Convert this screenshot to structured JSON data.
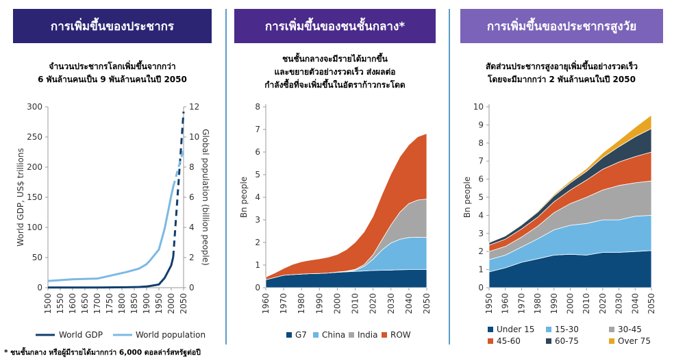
{
  "panels": [
    {
      "title": "การเพิ่มขึ้นของประชากร",
      "subtitle": [
        "จำนวนประชากรโลกเพิ่มขึ้นจากกว่า",
        "6 พันล้านคนเป็น 9 พันล้านคนในปี 2050"
      ]
    },
    {
      "title": "การเพิ่มขึ้นของชนชั้นกลาง*",
      "subtitle": [
        "ชนชั้นกลางจะมีรายได้มากขึ้น",
        "และขยายตัวอย่างรวดเร็ว ส่งผลต่อ",
        "กำลังซื้อที่จะเพิ่มขึ้นในอัตราก้าวกระโดด"
      ]
    },
    {
      "title": "การเพิ่มขึ้นของประชากรสูงวัย",
      "subtitle": [
        "สัดส่วนประชากรสูงอายุเพิ่มขึ้นอย่างรวดเร็ว",
        "โดยจะมีมากกว่า 2 พันล้านคนในปี 2050"
      ]
    }
  ],
  "colors": {
    "title1": "#2b2574",
    "title2": "#4a2a8a",
    "title3": "#7a63b8",
    "gdp": "#113e6d",
    "worldpop": "#7cb9e3",
    "g7": "#0c4a7c",
    "china": "#6cb6e3",
    "india": "#a6a6a6",
    "row": "#d4562a",
    "age_under15": "#0c4a7c",
    "age_15_30": "#6cb6e3",
    "age_30_45": "#a6a6a6",
    "age_45_60": "#d4562a",
    "age_60_75": "#2f4559",
    "age_over75": "#e8a524"
  },
  "footnote": "* ชนชั้นกลาง หรือผู้มีรายได้มากกว่า 6,000 ดอลล่าร์สหรัฐต่อปี",
  "chart_data": [
    {
      "type": "line",
      "categories": [
        "1500",
        "1550",
        "1600",
        "1650",
        "1700",
        "1750",
        "1800",
        "1850",
        "1900",
        "1950",
        "2000",
        "2050"
      ],
      "years": [
        1500,
        1600,
        1700,
        1820,
        1870,
        1900,
        1913,
        1950,
        1973,
        2000,
        2008,
        2050
      ],
      "ylabel": "World GDP, US$ trillions",
      "y2label": "Global population (billion people)",
      "ylim": [
        0,
        300
      ],
      "yticks": [
        0,
        50,
        100,
        150,
        200,
        250,
        300
      ],
      "y2lim": [
        0,
        12
      ],
      "y2ticks": [
        0,
        2,
        4,
        6,
        8,
        10,
        12
      ],
      "series": [
        {
          "name": "World GDP",
          "axis": "left",
          "values": [
            0.25,
            0.33,
            0.37,
            0.7,
            1.1,
            2,
            2.7,
            5.3,
            16,
            37,
            51,
            292
          ]
        },
        {
          "name": "World population",
          "axis": "right",
          "values": [
            0.44,
            0.56,
            0.6,
            1.04,
            1.27,
            1.56,
            1.79,
            2.53,
            3.9,
            6.1,
            6.7,
            9.2
          ]
        }
      ]
    },
    {
      "type": "area",
      "xlim": [
        1960,
        2050
      ],
      "xticks": [
        1960,
        1970,
        1980,
        1990,
        2000,
        2010,
        2020,
        2030,
        2040,
        2050
      ],
      "ylabel": "Bn people",
      "ylim": [
        0,
        8
      ],
      "yticks": [
        0,
        1,
        2,
        3,
        4,
        5,
        6,
        7,
        8
      ],
      "x": [
        1960,
        1965,
        1970,
        1975,
        1980,
        1985,
        1990,
        1995,
        2000,
        2005,
        2010,
        2015,
        2020,
        2025,
        2030,
        2035,
        2040,
        2045,
        2050
      ],
      "series": [
        {
          "name": "G7",
          "values": [
            0.35,
            0.45,
            0.55,
            0.58,
            0.6,
            0.62,
            0.63,
            0.65,
            0.68,
            0.7,
            0.72,
            0.74,
            0.76,
            0.77,
            0.78,
            0.79,
            0.8,
            0.8,
            0.8
          ]
        },
        {
          "name": "China",
          "values": [
            0,
            0,
            0,
            0,
            0,
            0,
            0,
            0,
            0.01,
            0.02,
            0.06,
            0.2,
            0.5,
            0.9,
            1.2,
            1.35,
            1.42,
            1.43,
            1.42
          ]
        },
        {
          "name": "India",
          "values": [
            0,
            0,
            0,
            0,
            0,
            0,
            0,
            0,
            0,
            0.01,
            0.03,
            0.08,
            0.2,
            0.45,
            0.8,
            1.2,
            1.5,
            1.65,
            1.7
          ]
        },
        {
          "name": "ROW",
          "values": [
            0.12,
            0.2,
            0.3,
            0.45,
            0.55,
            0.6,
            0.65,
            0.7,
            0.78,
            0.95,
            1.2,
            1.45,
            1.7,
            2.0,
            2.25,
            2.45,
            2.6,
            2.8,
            2.9
          ]
        }
      ]
    },
    {
      "type": "area",
      "xlim": [
        1950,
        2050
      ],
      "xticks": [
        1950,
        1960,
        1970,
        1980,
        1990,
        2000,
        2010,
        2020,
        2030,
        2040,
        2050
      ],
      "ylabel": "Bn people",
      "ylim": [
        0,
        10
      ],
      "yticks": [
        0,
        1,
        2,
        3,
        4,
        5,
        6,
        7,
        8,
        9,
        10
      ],
      "x": [
        1950,
        1960,
        1970,
        1980,
        1990,
        2000,
        2010,
        2020,
        2030,
        2040,
        2050
      ],
      "series": [
        {
          "name": "Under 15",
          "values": [
            0.87,
            1.1,
            1.4,
            1.6,
            1.8,
            1.85,
            1.8,
            1.95,
            1.95,
            2.0,
            2.05
          ]
        },
        {
          "name": "15-30",
          "values": [
            0.68,
            0.7,
            0.85,
            1.1,
            1.4,
            1.6,
            1.75,
            1.8,
            1.8,
            1.95,
            1.95
          ]
        },
        {
          "name": "30-45",
          "values": [
            0.45,
            0.48,
            0.55,
            0.7,
            0.95,
            1.2,
            1.45,
            1.65,
            1.9,
            1.85,
            1.9
          ]
        },
        {
          "name": "45-60",
          "values": [
            0.35,
            0.4,
            0.45,
            0.5,
            0.6,
            0.75,
            0.95,
            1.15,
            1.3,
            1.45,
            1.6
          ]
        },
        {
          "name": "60-75",
          "values": [
            0.14,
            0.18,
            0.22,
            0.28,
            0.33,
            0.4,
            0.48,
            0.65,
            0.85,
            1.1,
            1.3
          ]
        },
        {
          "name": "Over 75",
          "values": [
            0.02,
            0.03,
            0.04,
            0.06,
            0.08,
            0.11,
            0.15,
            0.25,
            0.35,
            0.52,
            0.75
          ]
        }
      ]
    }
  ]
}
